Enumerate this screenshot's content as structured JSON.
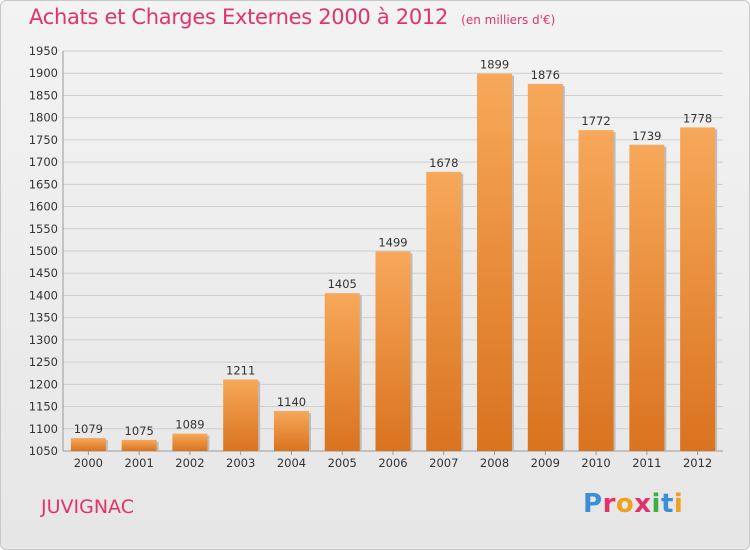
{
  "title": "Achats et Charges Externes 2000 à 2012",
  "unit_label": "(en milliers d'€)",
  "location": "JUVIGNAC",
  "brand": {
    "letters": [
      {
        "ch": "P",
        "color": "#3a8fd8"
      },
      {
        "ch": "r",
        "color": "#e0346a"
      },
      {
        "ch": "o",
        "color": "#f0a020"
      },
      {
        "ch": "x",
        "color": "#e0346a"
      },
      {
        "ch": "i",
        "color": "#3cb043"
      },
      {
        "ch": "t",
        "color": "#3a8fd8"
      },
      {
        "ch": "i",
        "color": "#f0a020"
      }
    ]
  },
  "colors": {
    "bar_top": "#f7a85a",
    "bar_bottom": "#d9731f",
    "title": "#e0346a"
  },
  "chart_data": {
    "type": "bar",
    "categories": [
      "2000",
      "2001",
      "2002",
      "2003",
      "2004",
      "2005",
      "2006",
      "2007",
      "2008",
      "2009",
      "2010",
      "2011",
      "2012"
    ],
    "values": [
      1079,
      1075,
      1089,
      1211,
      1140,
      1405,
      1499,
      1678,
      1899,
      1876,
      1772,
      1739,
      1778
    ],
    "ylim": [
      1050,
      1950
    ],
    "yticks": [
      1050,
      1100,
      1150,
      1200,
      1250,
      1300,
      1350,
      1400,
      1450,
      1500,
      1550,
      1600,
      1650,
      1700,
      1750,
      1800,
      1850,
      1900,
      1950
    ],
    "grid": true,
    "data_labels": true
  }
}
